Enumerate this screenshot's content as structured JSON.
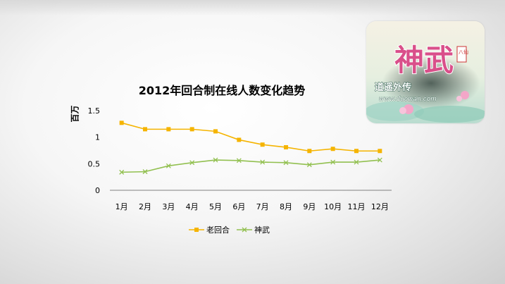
{
  "chart_data": {
    "type": "line",
    "title": "2012年回合制在线人数变化趋势",
    "ylabel": "百万",
    "xlabel": "",
    "categories": [
      "1月",
      "2月",
      "3月",
      "4月",
      "5月",
      "6月",
      "7月",
      "8月",
      "9月",
      "10月",
      "11月",
      "12月"
    ],
    "yticks": [
      "0",
      "0.5",
      "1",
      "1.5"
    ],
    "ylim": [
      0,
      1.5
    ],
    "grid": false,
    "legend": "bottom",
    "series": [
      {
        "name": "老回合",
        "color": "#f5b400",
        "marker": "square",
        "values": [
          1.27,
          1.15,
          1.15,
          1.15,
          1.11,
          0.95,
          0.86,
          0.81,
          0.74,
          0.78,
          0.74,
          0.74
        ]
      },
      {
        "name": "神武",
        "color": "#92c050",
        "marker": "x",
        "values": [
          0.34,
          0.35,
          0.46,
          0.52,
          0.57,
          0.56,
          0.53,
          0.52,
          0.48,
          0.53,
          0.53,
          0.57
        ]
      }
    ]
  },
  "logo": {
    "main_text": "神武",
    "side_text": "道遥外传",
    "small_tag": "八仙",
    "url_text": "www.duowan.com"
  }
}
